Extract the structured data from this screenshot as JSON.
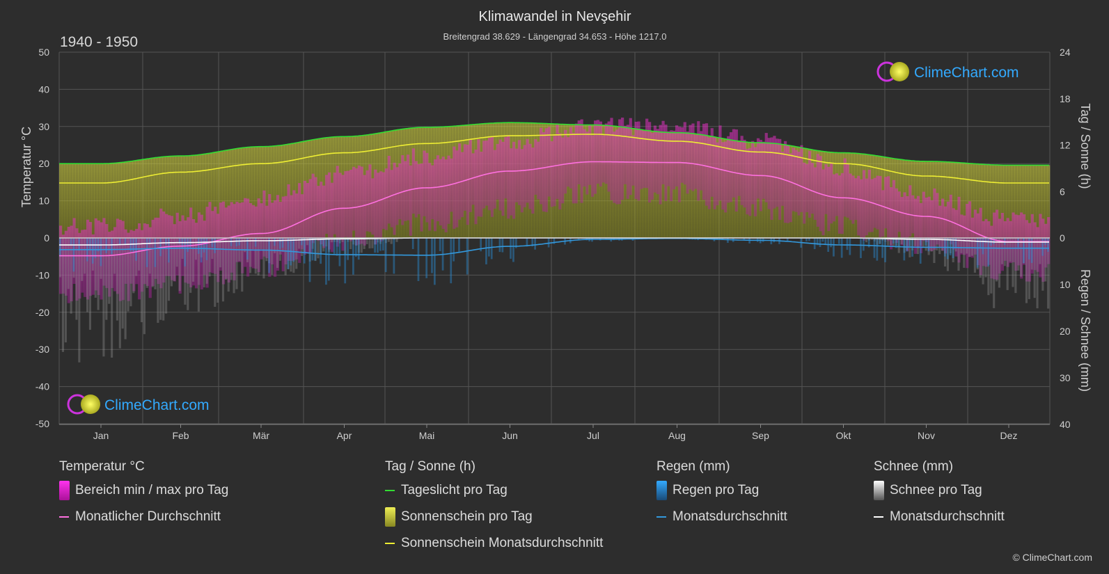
{
  "header": {
    "title": "Klimawandel in Nevşehir",
    "subtitle": "Breitengrad 38.629 - Längengrad 34.653 - Höhe 1217.0",
    "period": "1940 - 1950"
  },
  "logo": {
    "text": "ClimeChart.com",
    "icon": "climechart-logo-icon"
  },
  "copyright": "© ClimeChart.com",
  "colors": {
    "background": "#2d2d2d",
    "grid": "#555555",
    "temp_range": "#e020d0",
    "temp_avg": "#ff70e0",
    "daylight": "#33dd33",
    "sunshine": "#c8c832",
    "sunshine_avg": "#eeee33",
    "rain": "#2a8fd8",
    "rain_avg": "#3399dd",
    "snow": "#9a9a9a",
    "snow_avg": "#ffffff",
    "logo_blue": "#33aaff"
  },
  "chart_data": {
    "type": "line",
    "months": [
      "Jan",
      "Feb",
      "Mär",
      "Apr",
      "Mai",
      "Jun",
      "Jul",
      "Aug",
      "Sep",
      "Okt",
      "Nov",
      "Dez"
    ],
    "left_axis": {
      "title": "Temperatur °C",
      "ticks": [
        50,
        40,
        30,
        20,
        10,
        0,
        -10,
        -20,
        -30,
        -40,
        -50
      ],
      "ylim": [
        -50,
        50
      ]
    },
    "right_axis_sun": {
      "title": "Tag / Sonne (h)",
      "ticks": [
        24,
        18,
        12,
        6,
        0
      ],
      "ylim": [
        0,
        24
      ]
    },
    "right_axis_precip": {
      "title": "Regen / Schnee (mm)",
      "ticks": [
        0,
        10,
        20,
        30,
        40
      ],
      "ylim": [
        0,
        40
      ]
    },
    "grid": true,
    "series": [
      {
        "name": "Tageslicht pro Tag",
        "unit": "h",
        "values": [
          9.6,
          10.6,
          11.8,
          13.1,
          14.3,
          14.9,
          14.6,
          13.6,
          12.3,
          11.0,
          9.9,
          9.4
        ]
      },
      {
        "name": "Sonnenschein Monatsdurchschnitt",
        "unit": "h",
        "values": [
          7.1,
          8.5,
          9.6,
          11.0,
          12.2,
          13.2,
          13.4,
          12.5,
          11.1,
          9.6,
          8.0,
          7.1
        ]
      },
      {
        "name": "Monatlicher Durchschnitt",
        "unit": "°C",
        "values": [
          -4.8,
          -2.2,
          1.2,
          8.0,
          13.5,
          18.0,
          20.5,
          20.3,
          16.8,
          10.8,
          5.8,
          -1.0
        ]
      },
      {
        "name": "Regen Monatsdurchschnitt",
        "unit": "mm",
        "values": [
          2.5,
          2.2,
          2.6,
          3.6,
          3.7,
          1.8,
          0.3,
          0.1,
          0.5,
          1.5,
          2.0,
          2.2
        ]
      },
      {
        "name": "Schnee Monatsdurchschnitt",
        "unit": "mm",
        "values": [
          1.5,
          1.0,
          0.6,
          0.2,
          0.0,
          0.0,
          0.0,
          0.0,
          0.0,
          0.0,
          0.3,
          0.9
        ]
      }
    ],
    "daily_temp_range": {
      "min": [
        -15,
        -13,
        -8,
        -1,
        4,
        8,
        12,
        12,
        8,
        3,
        -2,
        -9
      ],
      "max": [
        3,
        6,
        11,
        17,
        22,
        26,
        30,
        30,
        26,
        19,
        11,
        5
      ]
    }
  },
  "legend": {
    "groups": [
      {
        "title": "Temperatur °C",
        "items": [
          {
            "label": "Bereich min / max pro Tag",
            "kind": "block",
            "color": "#e020d0"
          },
          {
            "label": "Monatlicher Durchschnitt",
            "kind": "line",
            "color": "#ff70e0"
          }
        ]
      },
      {
        "title": "Tag / Sonne (h)",
        "items": [
          {
            "label": "Tageslicht pro Tag",
            "kind": "line",
            "color": "#33dd33"
          },
          {
            "label": "Sonnenschein pro Tag",
            "kind": "block",
            "color": "#c8c832"
          },
          {
            "label": "Sonnenschein Monatsdurchschnitt",
            "kind": "line",
            "color": "#eeee33"
          }
        ]
      },
      {
        "title": "Regen (mm)",
        "items": [
          {
            "label": "Regen pro Tag",
            "kind": "block",
            "color": "#2a8fd8"
          },
          {
            "label": "Monatsdurchschnitt",
            "kind": "line",
            "color": "#3399dd"
          }
        ]
      },
      {
        "title": "Schnee (mm)",
        "items": [
          {
            "label": "Schnee pro Tag",
            "kind": "block",
            "color": "#cfcfcf"
          },
          {
            "label": "Monatsdurchschnitt",
            "kind": "line",
            "color": "#ffffff"
          }
        ]
      }
    ]
  }
}
